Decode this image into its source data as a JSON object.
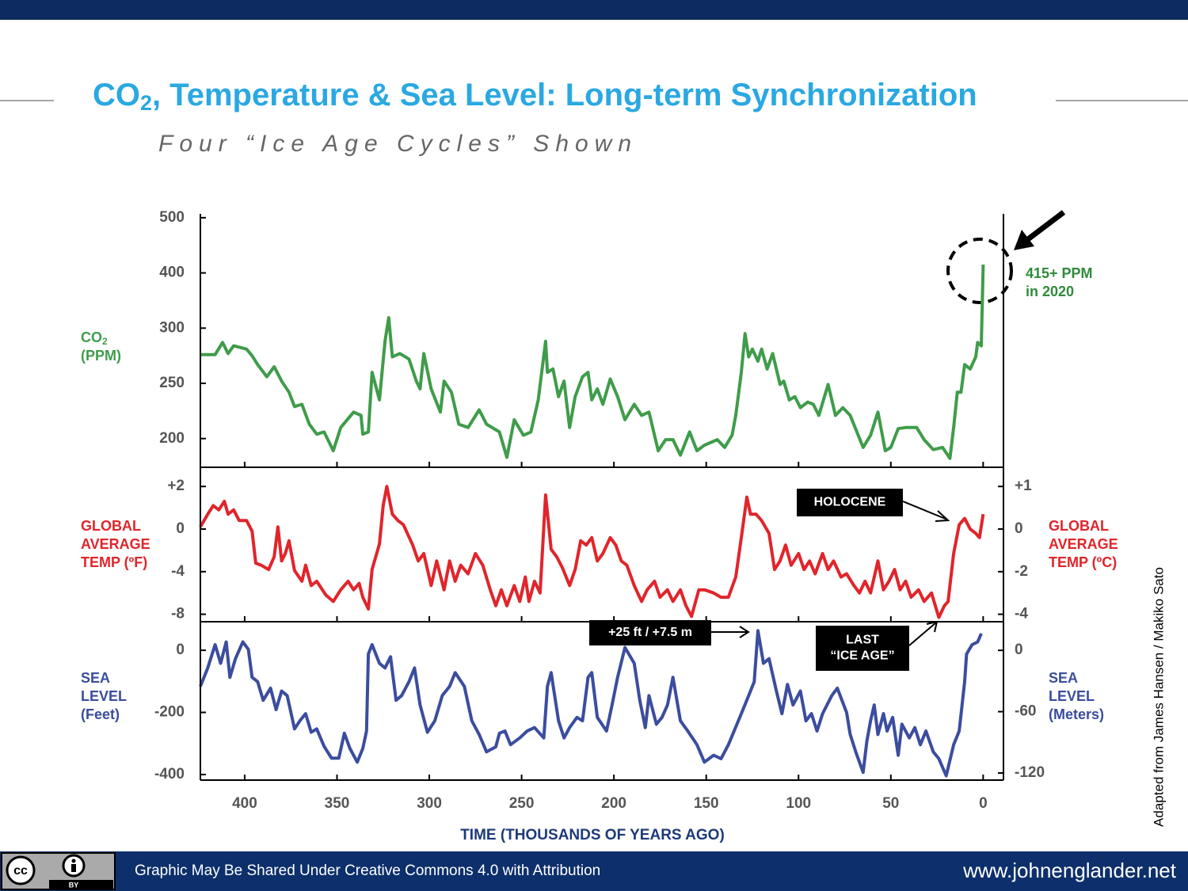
{
  "header": {
    "title": {
      "main": "CO",
      "sub": "2",
      "rest": ", Temperature & Sea Level: Long-term Synchronization"
    },
    "subtitle": "Four “Ice Age Cycles” Shown"
  },
  "chart_data": [
    {
      "type": "line",
      "ylabel": {
        "main": "CO",
        "sub": "2",
        "unit": "(PPM)"
      },
      "color": "#3f9c4a",
      "ylim": [
        174,
        507
      ],
      "yticks": [
        200,
        250,
        300,
        400,
        500
      ],
      "x": [
        424,
        416,
        412,
        409,
        406,
        399,
        396,
        393,
        388,
        384,
        380,
        376,
        373,
        369,
        365,
        361,
        357,
        352,
        348,
        341,
        337,
        336,
        333,
        331,
        327,
        324,
        322,
        320,
        316,
        311,
        307,
        305,
        303,
        299,
        294,
        292,
        288,
        284,
        279,
        273,
        269,
        262,
        258,
        254,
        249,
        245,
        241,
        237,
        236,
        233,
        230,
        227,
        224,
        221,
        217,
        214,
        212,
        209,
        206,
        202,
        198,
        194,
        189,
        185,
        181,
        176,
        172,
        168,
        164,
        159,
        155,
        151,
        144,
        140,
        136,
        134,
        131,
        129,
        127,
        125,
        122,
        120,
        117,
        114,
        110,
        108,
        105,
        102,
        99,
        95,
        92,
        89,
        84,
        80,
        76,
        72,
        65,
        61,
        57,
        53,
        50,
        46,
        42,
        36,
        32,
        27,
        22,
        18,
        16,
        14,
        12,
        10,
        7,
        4,
        3,
        1,
        0
      ],
      "values": [
        276,
        276,
        287,
        277,
        284,
        281,
        275,
        267,
        256,
        265,
        252,
        242,
        229,
        231,
        213,
        204,
        206,
        189,
        210,
        224,
        221,
        204,
        206,
        260,
        235,
        288,
        319,
        274,
        277,
        272,
        252,
        245,
        277,
        245,
        224,
        252,
        242,
        213,
        210,
        226,
        213,
        206,
        183,
        217,
        203,
        206,
        235,
        288,
        260,
        263,
        238,
        252,
        210,
        238,
        256,
        260,
        235,
        245,
        231,
        254,
        238,
        217,
        231,
        221,
        224,
        189,
        199,
        199,
        185,
        206,
        189,
        194,
        199,
        192,
        203,
        221,
        260,
        295,
        274,
        281,
        270,
        281,
        263,
        277,
        249,
        252,
        235,
        238,
        228,
        233,
        231,
        221,
        249,
        221,
        228,
        221,
        192,
        203,
        224,
        189,
        192,
        209,
        210,
        210,
        199,
        190,
        192,
        182,
        210,
        242,
        242,
        267,
        263,
        274,
        287,
        284,
        415
      ],
      "annotations": [
        {
          "text": [
            "415+ PPM",
            "in 2020"
          ]
        }
      ]
    },
    {
      "type": "line",
      "ylabel": [
        "GLOBAL",
        "AVERAGE",
        "TEMP (ºF)"
      ],
      "y2label": [
        "GLOBAL",
        "AVERAGE",
        "TEMP (ºC)"
      ],
      "color": "#e0252b",
      "ylim": [
        -8.7,
        2.9
      ],
      "yticks": [
        -8,
        -4,
        0,
        {
          "value": 2,
          "label": "+2"
        }
      ],
      "y2lim": [
        -4.35,
        1.45
      ],
      "y2ticks": [
        -4,
        -2,
        0,
        {
          "value": 1,
          "label": "+1"
        }
      ],
      "x": [
        424,
        420,
        417,
        414,
        411,
        409,
        406,
        403,
        399,
        396,
        394,
        391,
        387,
        384,
        382,
        380,
        378,
        376,
        373,
        369,
        367,
        364,
        361,
        356,
        352,
        348,
        344,
        341,
        338,
        336,
        333,
        331,
        327,
        325,
        323,
        320,
        317,
        314,
        309,
        306,
        303,
        299,
        296,
        292,
        289,
        286,
        283,
        279,
        275,
        271,
        267,
        264,
        261,
        258,
        254,
        251,
        248,
        246,
        243,
        240,
        237,
        234,
        231,
        228,
        224,
        221,
        218,
        215,
        212,
        209,
        206,
        202,
        199,
        196,
        193,
        189,
        185,
        182,
        178,
        175,
        171,
        168,
        164,
        161,
        158,
        154,
        151,
        146,
        142,
        138,
        134,
        131,
        128,
        126,
        123,
        120,
        116,
        113,
        110,
        107,
        104,
        100,
        97,
        94,
        91,
        87,
        84,
        81,
        77,
        74,
        70,
        67,
        64,
        61,
        57,
        54,
        51,
        48,
        45,
        42,
        39,
        35,
        32,
        28,
        24,
        21,
        19,
        16,
        13,
        10,
        7,
        4,
        2,
        0
      ],
      "values": [
        0.1,
        0.7,
        1.1,
        0.9,
        1.3,
        0.7,
        0.9,
        0.4,
        0.4,
        -0.2,
        -3.2,
        -3.4,
        -3.8,
        -2.6,
        0.1,
        -3.0,
        -2.3,
        -1.1,
        -3.9,
        -4.9,
        -3.4,
        -5.3,
        -4.9,
        -6.2,
        -6.8,
        -5.7,
        -4.9,
        -5.7,
        -5.1,
        -6.4,
        -7.5,
        -3.8,
        -1.4,
        1.1,
        2.0,
        0.7,
        0.4,
        0.2,
        -1.5,
        -3.0,
        -2.3,
        -5.3,
        -3.0,
        -5.7,
        -3.0,
        -4.9,
        -3.4,
        -4.2,
        -2.3,
        -3.4,
        -5.7,
        -7.2,
        -5.7,
        -7.2,
        -5.3,
        -6.8,
        -4.5,
        -6.8,
        -4.9,
        -6.0,
        1.6,
        -1.9,
        -2.6,
        -3.6,
        -5.3,
        -3.8,
        -1.1,
        -1.5,
        -0.8,
        -3.0,
        -2.3,
        -0.8,
        -1.5,
        -3.0,
        -3.4,
        -5.3,
        -6.8,
        -5.7,
        -4.9,
        -6.4,
        -5.7,
        -6.8,
        -5.7,
        -7.2,
        -8.2,
        -5.7,
        -5.7,
        -6.0,
        -6.4,
        -6.4,
        -4.5,
        -0.8,
        1.5,
        0.7,
        0.7,
        0.4,
        -0.4,
        -3.8,
        -3.0,
        -1.5,
        -3.4,
        -2.3,
        -3.8,
        -3.0,
        -4.2,
        -2.3,
        -3.8,
        -3.0,
        -4.5,
        -4.2,
        -5.3,
        -6.0,
        -4.9,
        -6.0,
        -3.0,
        -5.7,
        -4.9,
        -3.8,
        -5.7,
        -4.9,
        -6.4,
        -5.7,
        -6.8,
        -6.0,
        -8.3,
        -7.2,
        -6.8,
        -2.3,
        0.2,
        0.5,
        0,
        -0.4,
        -0.8,
        0.7
      ],
      "annotations": [
        {
          "text": [
            "HOLOCENE"
          ]
        },
        {
          "text": [
            "LAST",
            "“ICE AGE”"
          ]
        }
      ]
    },
    {
      "type": "line",
      "ylabel": [
        "SEA",
        "LEVEL",
        "(Feet)"
      ],
      "y2label": [
        "SEA",
        "LEVEL",
        "(Meters)"
      ],
      "color": "#3b4d9e",
      "ylim": [
        -418,
        92
      ],
      "yticks": [
        -400,
        -200,
        0
      ],
      "y2lim": [
        -127,
        28
      ],
      "y2ticks": [
        -120,
        -60,
        0
      ],
      "x": [
        424,
        420,
        416,
        413,
        410,
        408,
        405,
        401,
        398,
        396,
        393,
        390,
        386,
        383,
        380,
        377,
        373,
        370,
        367,
        364,
        361,
        357,
        353,
        349,
        346,
        343,
        339,
        336,
        334,
        333,
        331,
        327,
        324,
        321,
        318,
        315,
        311,
        308,
        305,
        301,
        297,
        293,
        289,
        286,
        281,
        277,
        273,
        269,
        264,
        262,
        259,
        256,
        251,
        247,
        243,
        238,
        236,
        234,
        230,
        227,
        224,
        220,
        217,
        214,
        212,
        209,
        204,
        201,
        198,
        194,
        189,
        186,
        183,
        181,
        177,
        174,
        171,
        168,
        164,
        160,
        155,
        151,
        146,
        142,
        138,
        131,
        127,
        124,
        122,
        119,
        116,
        112,
        109,
        106,
        103,
        99,
        96,
        93,
        90,
        87,
        82,
        79,
        74,
        72,
        69,
        65,
        63,
        61,
        59,
        57,
        54,
        52,
        49,
        46,
        44,
        40,
        37,
        34,
        31,
        27,
        24,
        20,
        16,
        13,
        10,
        9,
        6,
        3,
        1
      ],
      "values": [
        -116,
        -57,
        18,
        -42,
        27,
        -87,
        -27,
        27,
        3,
        -87,
        -101,
        -161,
        -122,
        -191,
        -131,
        -146,
        -253,
        -226,
        -204,
        -264,
        -253,
        -309,
        -347,
        -347,
        -267,
        -316,
        -360,
        -316,
        -260,
        -12,
        18,
        -42,
        -57,
        -21,
        -161,
        -146,
        -101,
        -57,
        -176,
        -264,
        -227,
        -146,
        -116,
        -72,
        -116,
        -227,
        -271,
        -327,
        -311,
        -267,
        -260,
        -304,
        -282,
        -260,
        -249,
        -282,
        -116,
        -72,
        -227,
        -282,
        -249,
        -216,
        -227,
        -87,
        -72,
        -216,
        -260,
        -176,
        -87,
        9,
        -42,
        -161,
        -249,
        -146,
        -238,
        -216,
        -176,
        -87,
        -227,
        -260,
        -304,
        -360,
        -338,
        -349,
        -304,
        -204,
        -146,
        -101,
        63,
        -42,
        -27,
        -131,
        -204,
        -110,
        -176,
        -131,
        -227,
        -204,
        -260,
        -204,
        -146,
        -122,
        -200,
        -271,
        -327,
        -393,
        -293,
        -227,
        -176,
        -271,
        -204,
        -260,
        -216,
        -338,
        -238,
        -282,
        -249,
        -304,
        -260,
        -327,
        -349,
        -404,
        -304,
        -260,
        -101,
        -12,
        18,
        27,
        54
      ],
      "xlabel": "TIME (THOUSANDS OF YEARS AGO)",
      "xlim": [
        424,
        -11
      ],
      "xticks": [
        400,
        350,
        300,
        250,
        200,
        150,
        100,
        50,
        0
      ],
      "annotations": [
        {
          "text": [
            "+25 ft / +7.5 m"
          ]
        }
      ]
    }
  ],
  "credit": "Adapted from James Hansen / Makiko Sato",
  "footer": {
    "license": "Graphic May Be Shared Under Creative Commons 4.0 with Attribution",
    "website": "www.johnenglander.net",
    "cc": "cc",
    "by": "BY"
  }
}
